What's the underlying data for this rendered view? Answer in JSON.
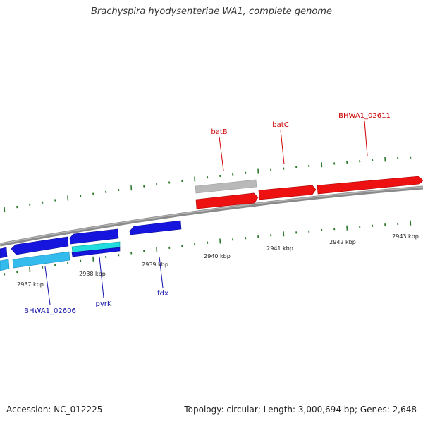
{
  "title": "Brachyspira hyodysenteriae WA1, complete genome",
  "footer": {
    "accession": "Accession: NC_012225",
    "topology": "Topology: circular; Length: 3,000,694 bp; Genes: 2,648"
  },
  "scale": {
    "ticks": [
      "2937 kbp",
      "2938 kbp",
      "2939 kbp",
      "2940 kbp",
      "2941 kbp",
      "2942 kbp",
      "2943 kbp"
    ]
  },
  "genes": {
    "forward_labels": [
      "batB",
      "batC",
      "BHWA1_02611"
    ],
    "reverse_labels": [
      "BHWA1_02606",
      "pyrK",
      "fdx"
    ]
  },
  "colors": {
    "backbone": "#7a7a7a",
    "forward_gene": "#ee1111",
    "forward_label": "#cc0000",
    "pseudo_gene": "#b9b9b9",
    "reverse_gene": "#1515dd",
    "reverse_gene_light": "#33bbee",
    "reverse_gene_cyan": "#22dddd",
    "reverse_label": "#1111aa",
    "tick": "#2b7a2b",
    "text": "#222222"
  }
}
